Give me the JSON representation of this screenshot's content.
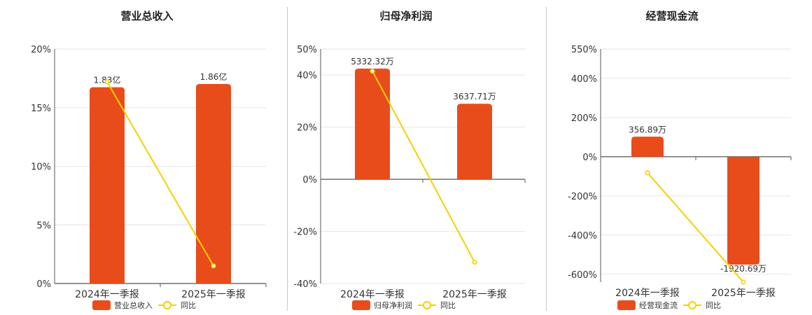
{
  "charts": [
    {
      "type": "bar+line",
      "title": "营业总收入",
      "categories": [
        "2024年一季报",
        "2025年一季报"
      ],
      "y_ticks": [
        "20%",
        "15%",
        "10%",
        "5%",
        "0%"
      ],
      "bar_values": [
        1.83,
        1.86
      ],
      "bar_labels": [
        "1.83亿",
        "1.86亿"
      ],
      "yoy_percent": [
        17.2,
        1.5
      ],
      "ylim": [
        0,
        20
      ],
      "legend": {
        "bar": "营业总收入",
        "line": "同比"
      }
    },
    {
      "type": "bar+line",
      "title": "归母净利润",
      "categories": [
        "2024年一季报",
        "2025年一季报"
      ],
      "y_ticks": [
        "50%",
        "40%",
        "20%",
        "0%",
        "-20%",
        "-40%"
      ],
      "bar_values": [
        5332.32,
        3637.71
      ],
      "bar_labels": [
        "5332.32万",
        "3637.71万"
      ],
      "yoy_percent": [
        41.5,
        -31.8
      ],
      "ylim": [
        -40,
        50
      ],
      "legend": {
        "bar": "归母净利润",
        "line": "同比"
      }
    },
    {
      "type": "bar+line",
      "title": "经营现金流",
      "categories": [
        "2024年一季报",
        "2025年一季报"
      ],
      "y_ticks": [
        "550%",
        "400%",
        "200%",
        "0%",
        "-200%",
        "-400%",
        "-600%"
      ],
      "bar_values": [
        356.89,
        -1920.69
      ],
      "bar_labels": [
        "356.89万",
        "-1920.69万"
      ],
      "yoy_percent": [
        -82,
        -640
      ],
      "ylim": [
        -640,
        550
      ],
      "legend": {
        "bar": "经营现金流",
        "line": "同比"
      }
    }
  ],
  "colors": {
    "bar": "#e84c1b",
    "line": "#f5d000",
    "axis": "#555555",
    "grid": "#e4e4ee",
    "text": "#333333"
  }
}
